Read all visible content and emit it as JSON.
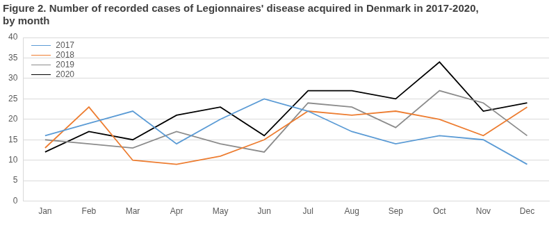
{
  "chart_data": {
    "type": "line",
    "title": [
      "Figure 2. Number of recorded cases of Legionnaires' disease acquired in Denmark in 2017-2020,",
      "by month"
    ],
    "categories": [
      "Jan",
      "Feb",
      "Mar",
      "Apr",
      "May",
      "Jun",
      "Jul",
      "Aug",
      "Sep",
      "Oct",
      "Nov",
      "Dec"
    ],
    "series": [
      {
        "name": "2017",
        "color": "#5b9bd5",
        "values": [
          16,
          19,
          22,
          14,
          20,
          25,
          22,
          17,
          14,
          16,
          15,
          9
        ]
      },
      {
        "name": "2018",
        "color": "#ed7d31",
        "values": [
          13,
          23,
          10,
          9,
          11,
          15,
          22,
          21,
          22,
          20,
          16,
          23
        ]
      },
      {
        "name": "2019",
        "color": "#8c8c8c",
        "values": [
          15,
          14,
          13,
          17,
          14,
          12,
          24,
          23,
          18,
          27,
          24,
          16
        ]
      },
      {
        "name": "2020",
        "color": "#000000",
        "values": [
          12,
          17,
          15,
          21,
          23,
          16,
          27,
          27,
          25,
          34,
          22,
          24
        ]
      }
    ],
    "ylim": [
      0,
      40
    ],
    "yticks": [
      0,
      5,
      10,
      15,
      20,
      25,
      30,
      35,
      40
    ],
    "grid": true,
    "legend": "upper left"
  }
}
